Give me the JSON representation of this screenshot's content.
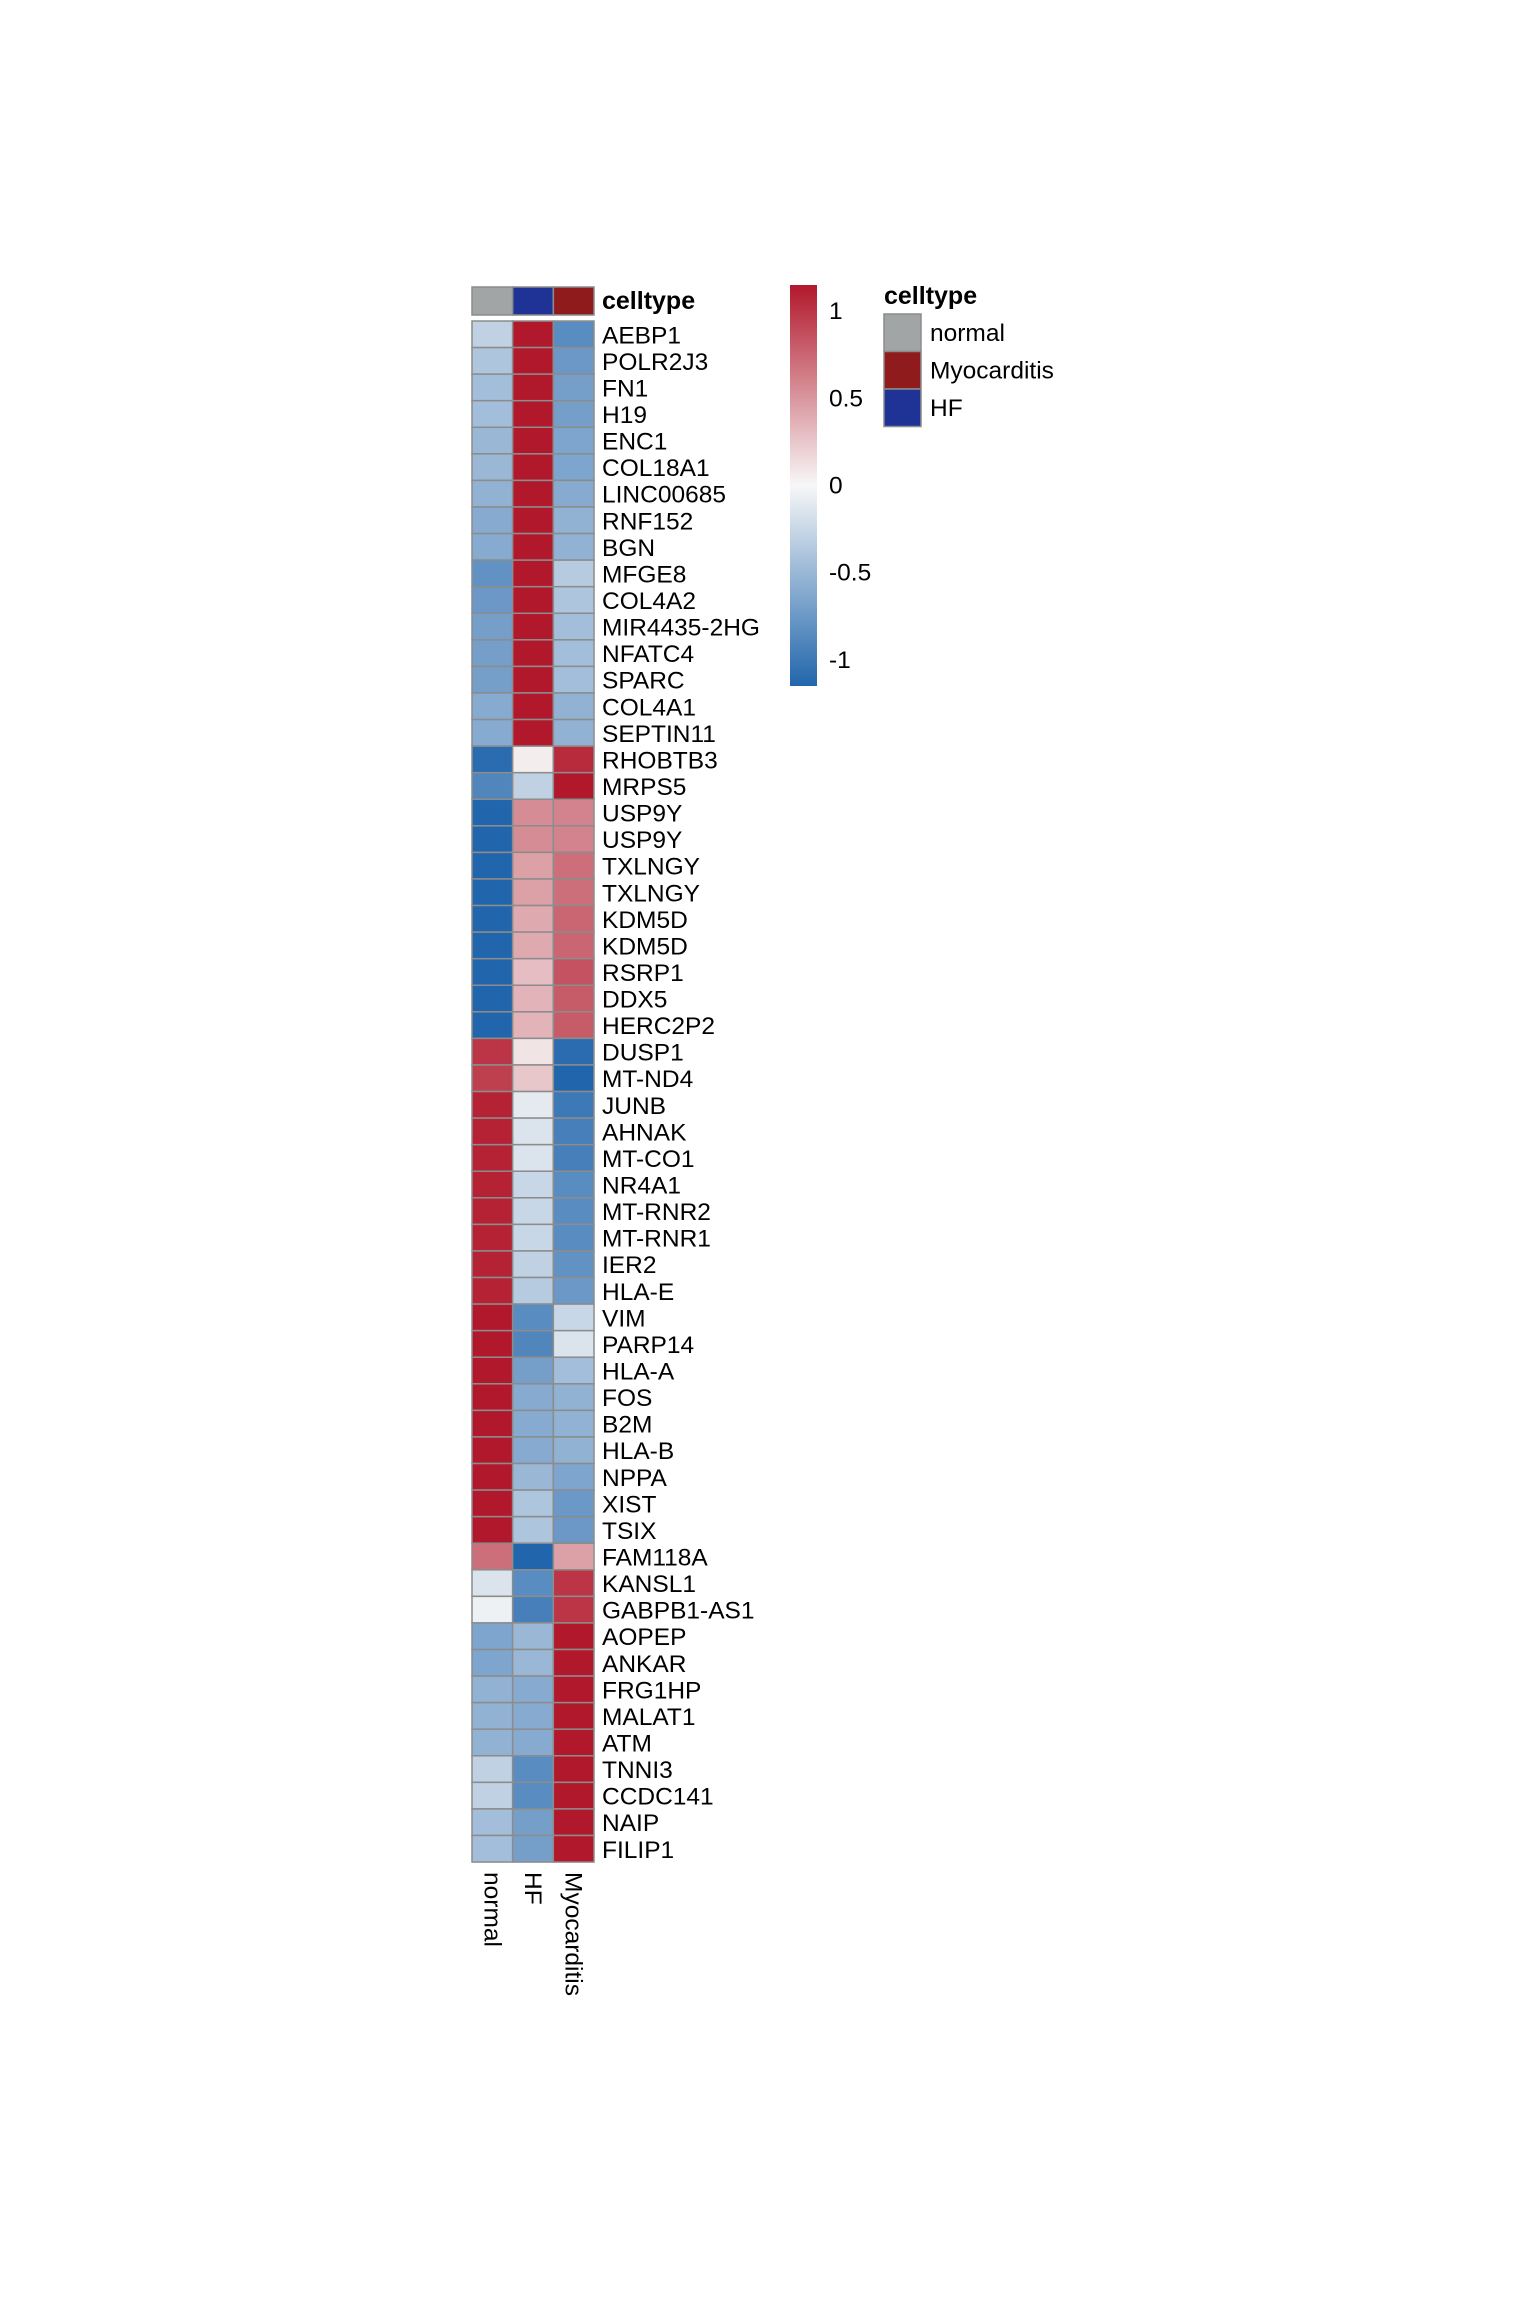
{
  "chart_data": {
    "type": "heatmap",
    "title": "",
    "xlabel": "",
    "ylabel": "",
    "columns": [
      "normal",
      "HF",
      "Myocarditis"
    ],
    "rows": [
      "AEBP1",
      "POLR2J3",
      "FN1",
      "H19",
      "ENC1",
      "COL18A1",
      "LINC00685",
      "RNF152",
      "BGN",
      "MFGE8",
      "COL4A2",
      "MIR4435-2HG",
      "NFATC4",
      "SPARC",
      "COL4A1",
      "SEPTIN11",
      "RHOBTB3",
      "MRPS5",
      "USP9Y",
      "USP9Y",
      "TXLNGY",
      "TXLNGY",
      "KDM5D",
      "KDM5D",
      "RSRP1",
      "DDX5",
      "HERC2P2",
      "DUSP1",
      "MT-ND4",
      "JUNB",
      "AHNAK",
      "MT-CO1",
      "NR4A1",
      "MT-RNR2",
      "MT-RNR1",
      "IER2",
      "HLA-E",
      "VIM",
      "PARP14",
      "HLA-A",
      "FOS",
      "B2M",
      "HLA-B",
      "NPPA",
      "XIST",
      "TSIX",
      "FAM118A",
      "KANSL1",
      "GABPB1-AS1",
      "AOPEP",
      "ANKAR",
      "FRG1HP",
      "MALAT1",
      "ATM",
      "TNNI3",
      "CCDC141",
      "NAIP",
      "FILIP1"
    ],
    "values": [
      [
        -0.3,
        1.15,
        -0.85
      ],
      [
        -0.4,
        1.15,
        -0.75
      ],
      [
        -0.45,
        1.15,
        -0.7
      ],
      [
        -0.45,
        1.15,
        -0.7
      ],
      [
        -0.5,
        1.15,
        -0.65
      ],
      [
        -0.5,
        1.15,
        -0.65
      ],
      [
        -0.55,
        1.15,
        -0.6
      ],
      [
        -0.6,
        1.15,
        -0.55
      ],
      [
        -0.6,
        1.15,
        -0.55
      ],
      [
        -0.8,
        1.15,
        -0.35
      ],
      [
        -0.75,
        1.15,
        -0.4
      ],
      [
        -0.7,
        1.15,
        -0.45
      ],
      [
        -0.7,
        1.15,
        -0.45
      ],
      [
        -0.7,
        1.15,
        -0.45
      ],
      [
        -0.6,
        1.15,
        -0.55
      ],
      [
        -0.6,
        1.15,
        -0.55
      ],
      [
        -1.1,
        0.05,
        1.05
      ],
      [
        -0.9,
        -0.3,
        1.15
      ],
      [
        -1.15,
        0.55,
        0.6
      ],
      [
        -1.15,
        0.55,
        0.6
      ],
      [
        -1.15,
        0.45,
        0.7
      ],
      [
        -1.15,
        0.45,
        0.7
      ],
      [
        -1.15,
        0.4,
        0.75
      ],
      [
        -1.15,
        0.4,
        0.75
      ],
      [
        -1.15,
        0.3,
        0.85
      ],
      [
        -1.15,
        0.35,
        0.8
      ],
      [
        -1.15,
        0.35,
        0.8
      ],
      [
        1.0,
        0.1,
        -1.1
      ],
      [
        0.95,
        0.25,
        -1.15
      ],
      [
        1.1,
        -0.1,
        -1.0
      ],
      [
        1.1,
        -0.15,
        -0.95
      ],
      [
        1.1,
        -0.15,
        -0.95
      ],
      [
        1.1,
        -0.25,
        -0.85
      ],
      [
        1.1,
        -0.25,
        -0.85
      ],
      [
        1.1,
        -0.25,
        -0.85
      ],
      [
        1.1,
        -0.3,
        -0.8
      ],
      [
        1.1,
        -0.35,
        -0.75
      ],
      [
        1.15,
        -0.85,
        -0.25
      ],
      [
        1.15,
        -0.9,
        -0.15
      ],
      [
        1.15,
        -0.7,
        -0.45
      ],
      [
        1.15,
        -0.6,
        -0.55
      ],
      [
        1.15,
        -0.6,
        -0.55
      ],
      [
        1.15,
        -0.6,
        -0.55
      ],
      [
        1.15,
        -0.5,
        -0.65
      ],
      [
        1.15,
        -0.4,
        -0.75
      ],
      [
        1.15,
        -0.4,
        -0.75
      ],
      [
        0.7,
        -1.15,
        0.45
      ],
      [
        -0.15,
        -0.85,
        1.0
      ],
      [
        -0.05,
        -0.95,
        1.0
      ],
      [
        -0.65,
        -0.5,
        1.15
      ],
      [
        -0.65,
        -0.5,
        1.15
      ],
      [
        -0.55,
        -0.6,
        1.15
      ],
      [
        -0.55,
        -0.6,
        1.15
      ],
      [
        -0.55,
        -0.6,
        1.15
      ],
      [
        -0.3,
        -0.85,
        1.15
      ],
      [
        -0.3,
        -0.85,
        1.15
      ],
      [
        -0.45,
        -0.7,
        1.15
      ],
      [
        -0.45,
        -0.7,
        1.15
      ]
    ],
    "color_scale": {
      "low": "#2166ac",
      "mid": "#f7f7f7",
      "high": "#b2182b",
      "domain": [
        -1.15,
        1.15
      ],
      "ticks": [
        1,
        0.5,
        0,
        -0.5,
        -1
      ],
      "tick_labels": [
        "1",
        "0.5",
        "0",
        "-0.5",
        "-1"
      ]
    },
    "annotation": {
      "name": "celltype",
      "values": [
        "normal",
        "HF",
        "Myocarditis"
      ],
      "legend_title": "celltype",
      "legend_entries": [
        {
          "label": "normal",
          "color": "#a2a5a5"
        },
        {
          "label": "Myocarditis",
          "color": "#8f1b1d"
        },
        {
          "label": "HF",
          "color": "#1f3397"
        }
      ],
      "colors": {
        "normal": "#a2a5a5",
        "HF": "#1f3397",
        "Myocarditis": "#8f1b1d"
      }
    },
    "legend_position": "right",
    "grid": true
  }
}
